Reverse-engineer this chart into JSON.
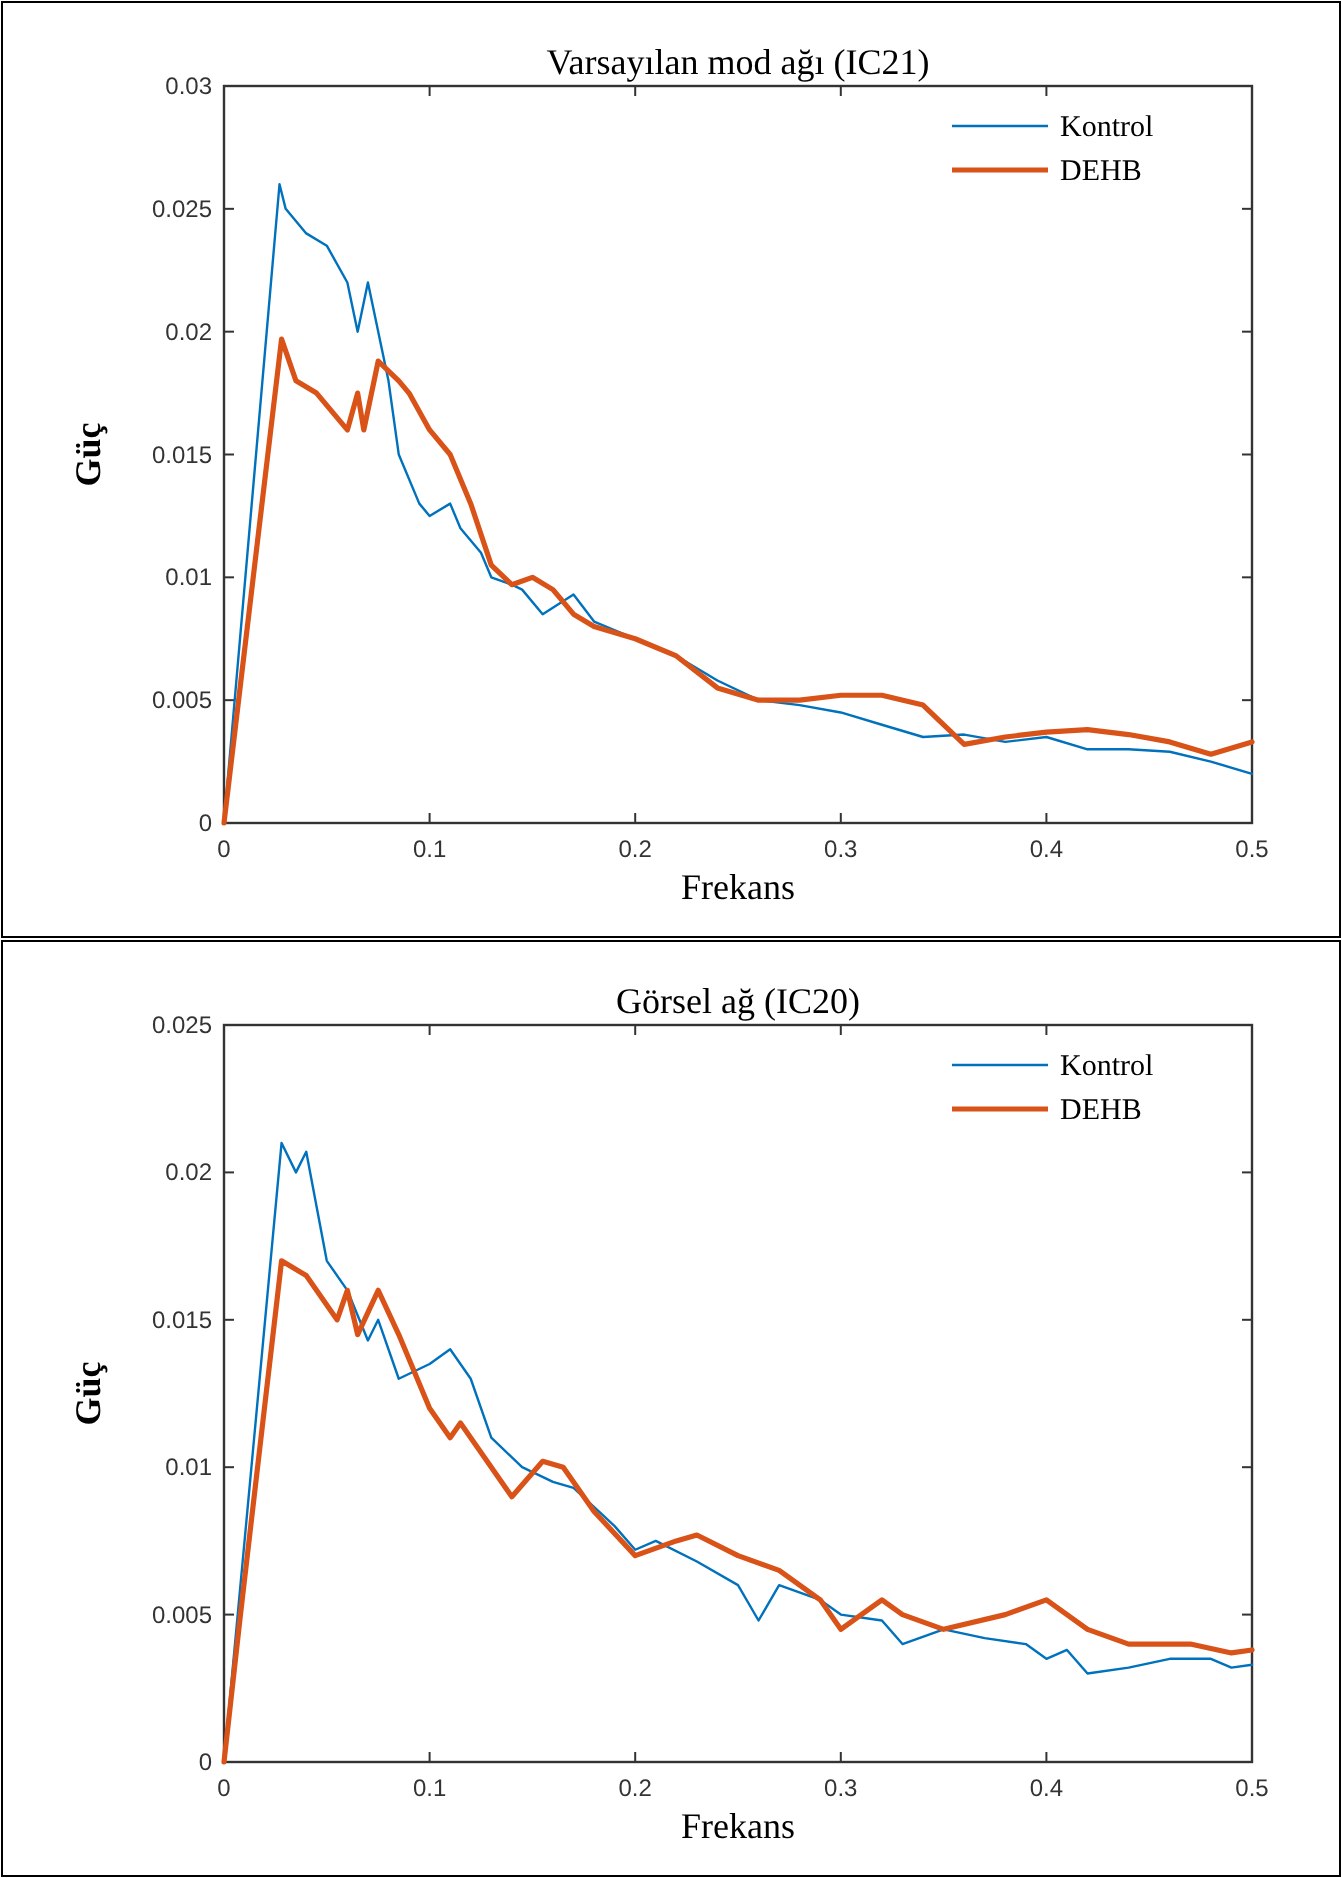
{
  "chart_data": [
    {
      "type": "line",
      "title": "Varsayılan mod ağı (IC21)",
      "xlabel": "Frekans",
      "ylabel": "Güç",
      "xlim": [
        0,
        0.5
      ],
      "ylim": [
        0,
        0.03
      ],
      "xticks": [
        0,
        0.1,
        0.2,
        0.3,
        0.4,
        0.5
      ],
      "yticks": [
        0,
        0.005,
        0.01,
        0.015,
        0.02,
        0.025,
        0.03
      ],
      "legend": "top right",
      "series": [
        {
          "name": "Kontrol",
          "color": "#0072bd",
          "x": [
            0,
            0.027,
            0.03,
            0.04,
            0.05,
            0.06,
            0.065,
            0.07,
            0.08,
            0.085,
            0.095,
            0.1,
            0.11,
            0.115,
            0.125,
            0.13,
            0.14,
            0.145,
            0.155,
            0.17,
            0.18,
            0.2,
            0.22,
            0.24,
            0.26,
            0.28,
            0.3,
            0.32,
            0.34,
            0.36,
            0.38,
            0.4,
            0.42,
            0.44,
            0.46,
            0.48,
            0.5
          ],
          "values": [
            0,
            0.026,
            0.025,
            0.024,
            0.0235,
            0.022,
            0.02,
            0.022,
            0.018,
            0.015,
            0.013,
            0.0125,
            0.013,
            0.012,
            0.011,
            0.01,
            0.0097,
            0.0095,
            0.0085,
            0.0093,
            0.0082,
            0.0075,
            0.0068,
            0.0058,
            0.005,
            0.0048,
            0.0045,
            0.004,
            0.0035,
            0.0036,
            0.0033,
            0.0035,
            0.003,
            0.003,
            0.0029,
            0.0025,
            0.002
          ]
        },
        {
          "name": "DEHB",
          "color": "#d95319",
          "x": [
            0,
            0.028,
            0.035,
            0.045,
            0.055,
            0.06,
            0.065,
            0.068,
            0.075,
            0.085,
            0.09,
            0.1,
            0.11,
            0.12,
            0.13,
            0.14,
            0.15,
            0.16,
            0.17,
            0.18,
            0.2,
            0.22,
            0.24,
            0.26,
            0.28,
            0.3,
            0.32,
            0.34,
            0.36,
            0.38,
            0.4,
            0.42,
            0.44,
            0.46,
            0.48,
            0.5
          ],
          "values": [
            0,
            0.0197,
            0.018,
            0.0175,
            0.0165,
            0.016,
            0.0175,
            0.016,
            0.0188,
            0.018,
            0.0175,
            0.016,
            0.015,
            0.013,
            0.0105,
            0.0097,
            0.01,
            0.0095,
            0.0085,
            0.008,
            0.0075,
            0.0068,
            0.0055,
            0.005,
            0.005,
            0.0052,
            0.0052,
            0.0048,
            0.0032,
            0.0035,
            0.0037,
            0.0038,
            0.0036,
            0.0033,
            0.0028,
            0.0033
          ]
        }
      ]
    },
    {
      "type": "line",
      "title": "Görsel ağ (IC20)",
      "xlabel": "Frekans",
      "ylabel": "Güç",
      "xlim": [
        0,
        0.5
      ],
      "ylim": [
        0,
        0.025
      ],
      "xticks": [
        0,
        0.1,
        0.2,
        0.3,
        0.4,
        0.5
      ],
      "yticks": [
        0,
        0.005,
        0.01,
        0.015,
        0.02,
        0.025
      ],
      "legend": "top right",
      "series": [
        {
          "name": "Kontrol",
          "color": "#0072bd",
          "x": [
            0,
            0.028,
            0.035,
            0.04,
            0.05,
            0.06,
            0.07,
            0.075,
            0.085,
            0.1,
            0.11,
            0.12,
            0.13,
            0.145,
            0.16,
            0.17,
            0.19,
            0.2,
            0.21,
            0.23,
            0.25,
            0.26,
            0.27,
            0.29,
            0.3,
            0.32,
            0.33,
            0.35,
            0.37,
            0.39,
            0.4,
            0.41,
            0.42,
            0.44,
            0.46,
            0.48,
            0.49,
            0.5
          ],
          "values": [
            0,
            0.021,
            0.02,
            0.0207,
            0.017,
            0.016,
            0.0143,
            0.015,
            0.013,
            0.0135,
            0.014,
            0.013,
            0.011,
            0.01,
            0.0095,
            0.0093,
            0.008,
            0.0072,
            0.0075,
            0.0068,
            0.006,
            0.0048,
            0.006,
            0.0055,
            0.005,
            0.0048,
            0.004,
            0.0045,
            0.0042,
            0.004,
            0.0035,
            0.0038,
            0.003,
            0.0032,
            0.0035,
            0.0035,
            0.0032,
            0.0033
          ]
        },
        {
          "name": "DEHB",
          "color": "#d95319",
          "x": [
            0,
            0.008,
            0.028,
            0.04,
            0.055,
            0.06,
            0.065,
            0.075,
            0.085,
            0.1,
            0.11,
            0.115,
            0.125,
            0.14,
            0.155,
            0.165,
            0.18,
            0.2,
            0.22,
            0.23,
            0.25,
            0.27,
            0.29,
            0.3,
            0.32,
            0.33,
            0.35,
            0.38,
            0.4,
            0.42,
            0.44,
            0.47,
            0.49,
            0.5
          ],
          "values": [
            0,
            0.005,
            0.017,
            0.0165,
            0.015,
            0.016,
            0.0145,
            0.016,
            0.0145,
            0.012,
            0.011,
            0.0115,
            0.0105,
            0.009,
            0.0102,
            0.01,
            0.0085,
            0.007,
            0.0075,
            0.0077,
            0.007,
            0.0065,
            0.0055,
            0.0045,
            0.0055,
            0.005,
            0.0045,
            0.005,
            0.0055,
            0.0045,
            0.004,
            0.004,
            0.0037,
            0.0038
          ]
        }
      ]
    }
  ]
}
